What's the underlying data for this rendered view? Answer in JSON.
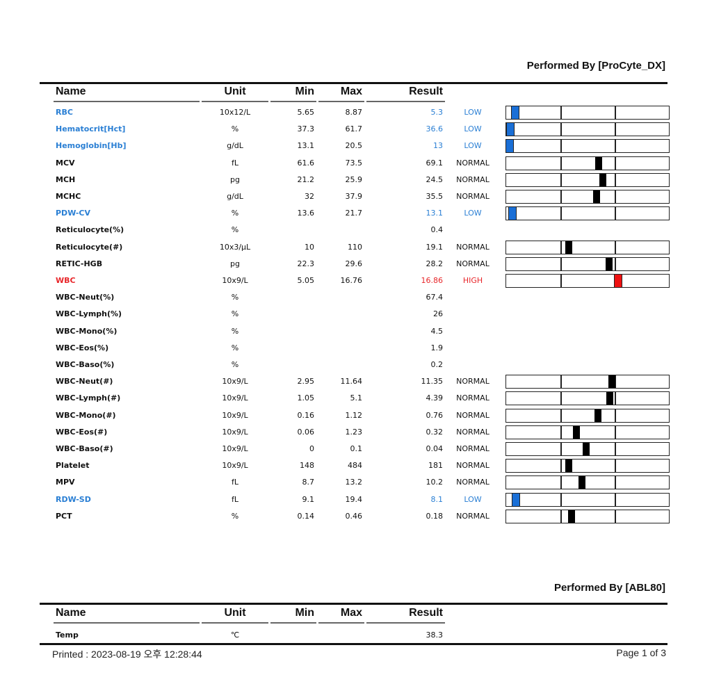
{
  "sections": [
    {
      "performed_by": "Performed By [ProCyte_DX]",
      "headers": {
        "name": "Name",
        "unit": "Unit",
        "min": "Min",
        "max": "Max",
        "result": "Result"
      },
      "rows": [
        {
          "name": "RBC",
          "unit": "10x12/L",
          "min": "5.65",
          "max": "8.87",
          "result": "5.3",
          "flag": "LOW",
          "marker": 0.055
        },
        {
          "name": "Hematocrit[Hct]",
          "unit": "%",
          "min": "37.3",
          "max": "61.7",
          "result": "36.6",
          "flag": "LOW",
          "marker": 0.025
        },
        {
          "name": "Hemoglobin[Hb]",
          "unit": "g/dL",
          "min": "13.1",
          "max": "20.5",
          "result": "13",
          "flag": "LOW",
          "marker": 0.022
        },
        {
          "name": "MCV",
          "unit": "fL",
          "min": "61.6",
          "max": "73.5",
          "result": "69.1",
          "flag": "NORMAL",
          "marker": 0.57
        },
        {
          "name": "MCH",
          "unit": "pg",
          "min": "21.2",
          "max": "25.9",
          "result": "24.5",
          "flag": "NORMAL",
          "marker": 0.595
        },
        {
          "name": "MCHC",
          "unit": "g/dL",
          "min": "32",
          "max": "37.9",
          "result": "35.5",
          "flag": "NORMAL",
          "marker": 0.557
        },
        {
          "name": "PDW-CV",
          "unit": "%",
          "min": "13.6",
          "max": "21.7",
          "result": "13.1",
          "flag": "LOW",
          "marker": 0.04
        },
        {
          "name": "Reticulocyte(%)",
          "unit": "%",
          "min": "",
          "max": "",
          "result": "0.4",
          "flag": "",
          "marker": null
        },
        {
          "name": "Reticulocyte(#)",
          "unit": "10x3/μL",
          "min": "10",
          "max": "110",
          "result": "19.1",
          "flag": "NORMAL",
          "marker": 0.385
        },
        {
          "name": "RETIC-HGB",
          "unit": "pg",
          "min": "22.3",
          "max": "29.6",
          "result": "28.2",
          "flag": "NORMAL",
          "marker": 0.632
        },
        {
          "name": "WBC",
          "unit": "10x9/L",
          "min": "5.05",
          "max": "16.76",
          "result": "16.86",
          "flag": "HIGH",
          "marker": 0.69
        },
        {
          "name": "WBC-Neut(%)",
          "unit": "%",
          "min": "",
          "max": "",
          "result": "67.4",
          "flag": "",
          "marker": null
        },
        {
          "name": "WBC-Lymph(%)",
          "unit": "%",
          "min": "",
          "max": "",
          "result": "26",
          "flag": "",
          "marker": null
        },
        {
          "name": "WBC-Mono(%)",
          "unit": "%",
          "min": "",
          "max": "",
          "result": "4.5",
          "flag": "",
          "marker": null
        },
        {
          "name": "WBC-Eos(%)",
          "unit": "%",
          "min": "",
          "max": "",
          "result": "1.9",
          "flag": "",
          "marker": null
        },
        {
          "name": "WBC-Baso(%)",
          "unit": "%",
          "min": "",
          "max": "",
          "result": "0.2",
          "flag": "",
          "marker": null
        },
        {
          "name": "WBC-Neut(#)",
          "unit": "10x9/L",
          "min": "2.95",
          "max": "11.64",
          "result": "11.35",
          "flag": "NORMAL",
          "marker": 0.65
        },
        {
          "name": "WBC-Lymph(#)",
          "unit": "10x9/L",
          "min": "1.05",
          "max": "5.1",
          "result": "4.39",
          "flag": "NORMAL",
          "marker": 0.637
        },
        {
          "name": "WBC-Mono(#)",
          "unit": "10x9/L",
          "min": "0.16",
          "max": "1.12",
          "result": "0.76",
          "flag": "NORMAL",
          "marker": 0.565
        },
        {
          "name": "WBC-Eos(#)",
          "unit": "10x9/L",
          "min": "0.06",
          "max": "1.23",
          "result": "0.32",
          "flag": "NORMAL",
          "marker": 0.43
        },
        {
          "name": "WBC-Baso(#)",
          "unit": "10x9/L",
          "min": "0",
          "max": "0.1",
          "result": "0.04",
          "flag": "NORMAL",
          "marker": 0.49
        },
        {
          "name": "Platelet",
          "unit": "10x9/L",
          "min": "148",
          "max": "484",
          "result": "181",
          "flag": "NORMAL",
          "marker": 0.385
        },
        {
          "name": "MPV",
          "unit": "fL",
          "min": "8.7",
          "max": "13.2",
          "result": "10.2",
          "flag": "NORMAL",
          "marker": 0.465
        },
        {
          "name": "RDW-SD",
          "unit": "fL",
          "min": "9.1",
          "max": "19.4",
          "result": "8.1",
          "flag": "LOW",
          "marker": 0.06
        },
        {
          "name": "PCT",
          "unit": "%",
          "min": "0.14",
          "max": "0.46",
          "result": "0.18",
          "flag": "NORMAL",
          "marker": 0.4
        }
      ]
    },
    {
      "performed_by": "Performed By [ABL80]",
      "headers": {
        "name": "Name",
        "unit": "Unit",
        "min": "Min",
        "max": "Max",
        "result": "Result"
      },
      "rows": [
        {
          "name": "Temp",
          "unit": "℃",
          "min": "",
          "max": "",
          "result": "38.3",
          "flag": "",
          "marker": null
        }
      ]
    }
  ],
  "footer": {
    "printed": "Printed :  2023-08-19 오후 12:28:44",
    "page": "Page 1 of 3"
  },
  "colors": {
    "low": "#2a7fd4",
    "high": "#e8262a",
    "low_marker": "#1a6fd6",
    "high_marker": "#ee1111",
    "normal_marker": "#000000"
  }
}
